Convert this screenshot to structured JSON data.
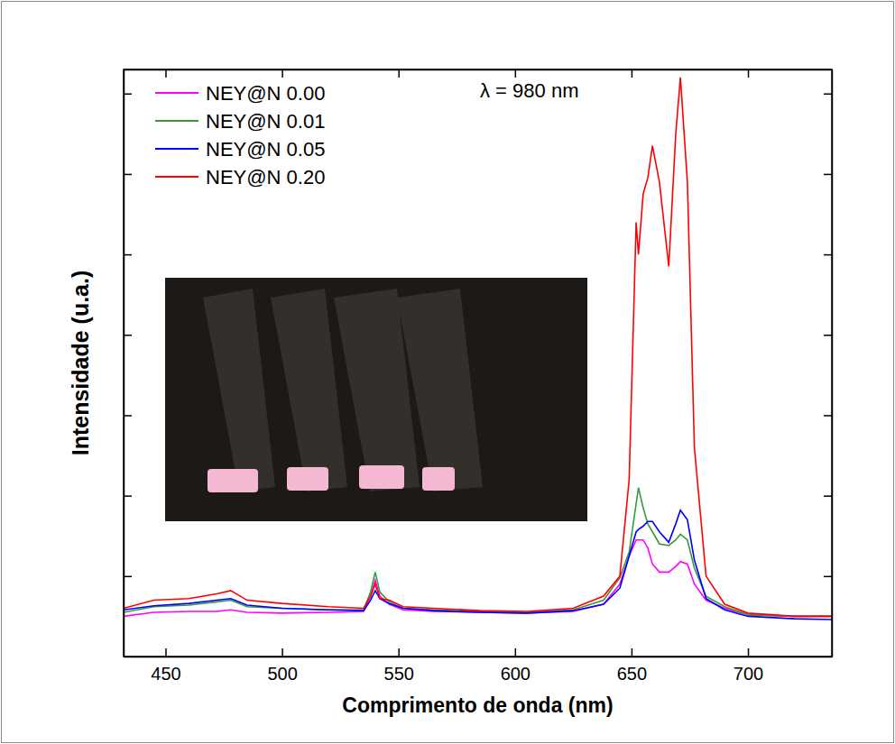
{
  "chart_data": {
    "type": "line",
    "x_label": "Comprimento de onda (nm)",
    "y_label": "Intensidade (u.a.)",
    "annotation": "λ = 980 nm",
    "x": [
      432,
      445,
      460,
      472,
      478,
      485,
      500,
      520,
      535,
      538,
      540,
      542,
      546,
      552,
      565,
      585,
      605,
      625,
      638,
      645,
      649,
      652,
      653,
      655,
      657,
      659,
      662,
      666,
      669,
      671,
      674,
      677,
      682,
      690,
      700,
      720,
      736
    ],
    "series": [
      {
        "name": "NEY@N 0.00",
        "color": "#ff00ff",
        "values": [
          0.5,
          0.55,
          0.56,
          0.56,
          0.58,
          0.55,
          0.54,
          0.55,
          0.56,
          0.75,
          0.95,
          0.75,
          0.65,
          0.58,
          0.56,
          0.55,
          0.54,
          0.56,
          0.65,
          0.9,
          1.25,
          1.45,
          1.45,
          1.45,
          1.35,
          1.15,
          1.05,
          1.05,
          1.12,
          1.18,
          1.15,
          0.9,
          0.7,
          0.6,
          0.52,
          0.5,
          0.5
        ]
      },
      {
        "name": "NEY@N 0.01",
        "color": "#3a9a3a",
        "values": [
          0.55,
          0.62,
          0.64,
          0.68,
          0.7,
          0.62,
          0.6,
          0.58,
          0.58,
          0.8,
          1.05,
          0.8,
          0.68,
          0.6,
          0.58,
          0.56,
          0.55,
          0.58,
          0.7,
          0.98,
          1.3,
          1.9,
          2.1,
          1.85,
          1.65,
          1.55,
          1.4,
          1.38,
          1.45,
          1.52,
          1.45,
          1.1,
          0.75,
          0.62,
          0.52,
          0.5,
          0.5
        ]
      },
      {
        "name": "NEY@N 0.05",
        "color": "#0000ff",
        "values": [
          0.58,
          0.63,
          0.66,
          0.7,
          0.72,
          0.64,
          0.6,
          0.58,
          0.57,
          0.7,
          0.82,
          0.72,
          0.66,
          0.6,
          0.57,
          0.55,
          0.54,
          0.57,
          0.65,
          0.85,
          1.25,
          1.55,
          1.58,
          1.62,
          1.68,
          1.68,
          1.55,
          1.42,
          1.65,
          1.82,
          1.7,
          1.2,
          0.72,
          0.58,
          0.5,
          0.47,
          0.46
        ]
      },
      {
        "name": "NEY@N 0.20",
        "color": "#ff0000",
        "values": [
          0.6,
          0.7,
          0.72,
          0.78,
          0.82,
          0.7,
          0.66,
          0.62,
          0.6,
          0.75,
          0.9,
          0.72,
          0.7,
          0.62,
          0.6,
          0.57,
          0.56,
          0.6,
          0.75,
          1.0,
          2.2,
          5.4,
          5.0,
          5.75,
          5.95,
          6.35,
          5.9,
          4.85,
          6.5,
          7.2,
          5.9,
          2.6,
          1.0,
          0.65,
          0.54,
          0.5,
          0.5
        ]
      }
    ],
    "xlim": [
      432,
      736
    ],
    "xticks": [
      450,
      500,
      550,
      600,
      650,
      700
    ],
    "ylim": [
      0,
      7.3
    ],
    "yticks": [
      1,
      2,
      3,
      4,
      5,
      6,
      7
    ],
    "tick_labels": "x",
    "legend": "upper left",
    "grid": false
  }
}
